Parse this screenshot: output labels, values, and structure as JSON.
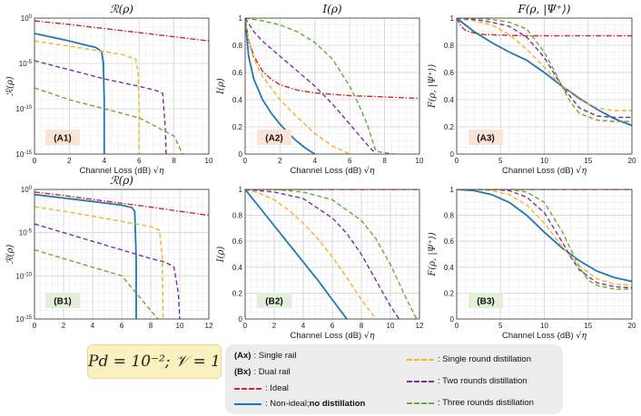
{
  "figure": {
    "colors": {
      "ideal": "#d62728",
      "no_distillation": "#1f77b4",
      "single_round": "#f0b323",
      "two_rounds": "#7b2f9e",
      "three_rounds": "#6aaa32",
      "label_bg_A": "#fbe3d6",
      "label_bg_B": "#e2f0d9"
    }
  },
  "parameter_box": {
    "text": "P_d = 10^{-2}; V = 1",
    "display": "Pd = 10⁻²; 𝒱 = 1"
  },
  "legend": {
    "ax_code": "(Ax)",
    "ax_label": ": Single rail",
    "bx_code": "(Bx)",
    "bx_label": ": Dual rail",
    "ideal_label": ": Ideal",
    "nodist_prefix": ": Non-ideal; ",
    "nodist_bold": "no distillation",
    "single_label": ": Single round distillation",
    "two_label": ": Two rounds distillation",
    "three_label": ": Three rounds distillation"
  },
  "chart_data": [
    {
      "id": "A1",
      "type": "line",
      "title": "ℛ(ρ)",
      "panel_label": "(A1)",
      "xlabel": "Channel Loss (dB) √η",
      "ylabel": "ℛ(ρ)",
      "yscale": "log",
      "xlim": [
        0,
        10
      ],
      "ylim": [
        1e-15,
        1
      ],
      "xticks": [
        0,
        2,
        4,
        6,
        8,
        10
      ],
      "yticks": [
        1,
        1e-05,
        1e-10,
        1e-15
      ],
      "yticklabels": [
        "10^0",
        "10^-5",
        "10^-10",
        "10^-15"
      ],
      "series": [
        {
          "name": "Ideal",
          "key": "ideal",
          "x": [
            0,
            2,
            4,
            6,
            8,
            10
          ],
          "y": [
            0.5,
            0.2,
            0.07,
            0.025,
            0.009,
            0.003
          ]
        },
        {
          "name": "No distillation",
          "key": "no_distillation",
          "x": [
            0,
            1,
            2,
            3,
            3.5,
            3.85,
            3.95,
            4.0,
            4.0
          ],
          "y": [
            0.02,
            0.008,
            0.003,
            0.001,
            0.0006,
            0.0002,
            1e-05,
            1e-09,
            1e-15
          ]
        },
        {
          "name": "Single round distillation",
          "key": "single_round",
          "x": [
            0,
            2,
            4,
            5,
            5.8,
            5.95,
            6.0,
            6.0
          ],
          "y": [
            0.003,
            0.0008,
            0.0002,
            0.0001,
            3e-05,
            1e-06,
            1e-10,
            1e-15
          ]
        },
        {
          "name": "Two rounds distillation",
          "key": "two_rounds",
          "x": [
            0,
            2,
            4,
            6,
            7,
            7.35,
            7.5,
            7.55
          ],
          "y": [
            2e-05,
            2e-06,
            2e-07,
            3e-08,
            1e-08,
            5e-09,
            1e-12,
            1e-15
          ]
        },
        {
          "name": "Three rounds distillation",
          "key": "three_rounds",
          "x": [
            0,
            2,
            4,
            6,
            8,
            8.5
          ],
          "y": [
            2e-08,
            1e-09,
            1e-10,
            1e-11,
            1e-13,
            1e-15
          ]
        }
      ]
    },
    {
      "id": "A2",
      "type": "line",
      "title": "I(ρ)",
      "panel_label": "(A2)",
      "xlabel": "Channel Loss (dB) √η",
      "ylabel": "I(ρ)",
      "yscale": "linear",
      "xlim": [
        0,
        10
      ],
      "ylim": [
        0,
        1
      ],
      "xticks": [
        0,
        2,
        4,
        6,
        8,
        10
      ],
      "yticks": [
        0,
        0.2,
        0.4,
        0.6,
        0.8,
        1
      ],
      "series": [
        {
          "name": "Ideal",
          "key": "ideal",
          "x": [
            0,
            0.2,
            0.5,
            1,
            1.5,
            2,
            3,
            4,
            6,
            8,
            10
          ],
          "y": [
            1,
            0.84,
            0.72,
            0.61,
            0.55,
            0.51,
            0.47,
            0.45,
            0.43,
            0.42,
            0.41
          ]
        },
        {
          "name": "No distillation",
          "key": "no_distillation",
          "x": [
            0,
            0.2,
            0.5,
            1,
            1.5,
            2,
            2.5,
            3,
            3.5,
            4
          ],
          "y": [
            1,
            0.72,
            0.55,
            0.4,
            0.3,
            0.22,
            0.15,
            0.09,
            0.04,
            0
          ]
        },
        {
          "name": "Single round distillation",
          "key": "single_round",
          "x": [
            0,
            0.25,
            0.5,
            1,
            2,
            3,
            4,
            5,
            6
          ],
          "y": [
            1,
            0.8,
            0.7,
            0.57,
            0.4,
            0.27,
            0.15,
            0.06,
            0
          ]
        },
        {
          "name": "Two rounds distillation",
          "key": "two_rounds",
          "x": [
            0,
            0.5,
            1,
            2,
            3,
            4,
            5,
            6,
            7,
            7.5
          ],
          "y": [
            1,
            0.9,
            0.83,
            0.72,
            0.61,
            0.5,
            0.37,
            0.22,
            0.07,
            0
          ]
        },
        {
          "name": "Three rounds distillation",
          "key": "three_rounds",
          "x": [
            0,
            1,
            2,
            3,
            4,
            5,
            6,
            6.5,
            7,
            7.5,
            8.5
          ],
          "y": [
            1,
            0.98,
            0.95,
            0.9,
            0.82,
            0.7,
            0.5,
            0.37,
            0.22,
            0.02,
            0
          ]
        }
      ]
    },
    {
      "id": "A3",
      "type": "line",
      "title": "F(ρ, |Ψ⁺⟩)",
      "panel_label": "(A3)",
      "xlabel": "Channel Loss (dB) √η",
      "ylabel": "F(ρ, |Ψ⁺⟩)",
      "yscale": "linear",
      "xlim": [
        0,
        20
      ],
      "ylim": [
        0,
        1
      ],
      "xticks": [
        0,
        5,
        10,
        15,
        20
      ],
      "yticks": [
        0,
        0.2,
        0.4,
        0.6,
        0.8,
        1
      ],
      "series": [
        {
          "name": "Ideal",
          "key": "ideal",
          "x": [
            0,
            0.5,
            1,
            2,
            3,
            5,
            8,
            12,
            20
          ],
          "y": [
            1,
            0.94,
            0.91,
            0.89,
            0.88,
            0.875,
            0.87,
            0.87,
            0.87
          ]
        },
        {
          "name": "No distillation",
          "key": "no_distillation",
          "x": [
            0,
            1,
            2,
            4,
            6,
            8,
            10,
            12,
            14,
            16,
            18,
            20
          ],
          "y": [
            1,
            0.95,
            0.9,
            0.82,
            0.75,
            0.69,
            0.6,
            0.5,
            0.41,
            0.33,
            0.26,
            0.21
          ]
        },
        {
          "name": "Single round distillation",
          "key": "single_round",
          "x": [
            0,
            2,
            4,
            6,
            8,
            10,
            12,
            14,
            16,
            18,
            20
          ],
          "y": [
            1,
            0.98,
            0.95,
            0.88,
            0.77,
            0.64,
            0.5,
            0.4,
            0.34,
            0.32,
            0.32
          ]
        },
        {
          "name": "Two rounds distillation",
          "key": "two_rounds",
          "x": [
            0,
            2,
            4,
            6,
            8,
            10,
            12,
            14,
            16,
            18,
            20
          ],
          "y": [
            1,
            0.99,
            0.97,
            0.94,
            0.86,
            0.71,
            0.5,
            0.34,
            0.28,
            0.27,
            0.27
          ]
        },
        {
          "name": "Three rounds distillation",
          "key": "three_rounds",
          "x": [
            0,
            2,
            4,
            6,
            8,
            10,
            11,
            12,
            13,
            14,
            16,
            18,
            20
          ],
          "y": [
            1,
            1,
            0.99,
            0.97,
            0.92,
            0.75,
            0.63,
            0.5,
            0.38,
            0.3,
            0.25,
            0.24,
            0.24
          ]
        }
      ]
    },
    {
      "id": "B1",
      "type": "line",
      "title": "ℛ(ρ)",
      "panel_label": "(B1)",
      "xlabel": "",
      "ylabel": "ℛ(ρ)",
      "yscale": "log",
      "xlim": [
        0,
        12
      ],
      "ylim": [
        1e-15,
        1
      ],
      "xticks": [
        0,
        2,
        4,
        6,
        8,
        10,
        12
      ],
      "yticks": [
        1,
        1e-05,
        1e-10,
        1e-15
      ],
      "yticklabels": [
        "10^0",
        "10^-5",
        "10^-10",
        "10^-15"
      ],
      "series": [
        {
          "name": "Ideal",
          "key": "ideal",
          "x": [
            0,
            2,
            4,
            6,
            8,
            10,
            12
          ],
          "y": [
            0.5,
            0.2,
            0.07,
            0.025,
            0.009,
            0.003,
            0.001
          ]
        },
        {
          "name": "No distillation",
          "key": "no_distillation",
          "x": [
            0,
            2,
            4,
            6,
            6.7,
            6.9,
            7.0,
            7.0
          ],
          "y": [
            0.25,
            0.1,
            0.04,
            0.015,
            0.008,
            0.003,
            1e-08,
            1e-15
          ]
        },
        {
          "name": "Single round distillation",
          "key": "single_round",
          "x": [
            0,
            2,
            4,
            6,
            8,
            8.6,
            8.8,
            8.85
          ],
          "y": [
            0.01,
            0.003,
            0.0008,
            0.0002,
            5e-05,
            2e-05,
            1e-08,
            1e-15
          ]
        },
        {
          "name": "Two rounds distillation",
          "key": "two_rounds",
          "x": [
            0,
            2,
            4,
            6,
            8,
            9,
            9.6,
            9.9,
            10
          ],
          "y": [
            0.0001,
            1e-05,
            1e-06,
            1e-07,
            1e-08,
            4e-09,
            1e-09,
            1e-12,
            1e-15
          ]
        },
        {
          "name": "Three rounds distillation",
          "key": "three_rounds",
          "x": [
            0,
            2,
            4,
            6,
            8,
            8.5
          ],
          "y": [
            1e-07,
            1e-08,
            1e-09,
            1e-10,
            1e-14,
            1e-15
          ]
        }
      ]
    },
    {
      "id": "B2",
      "type": "line",
      "title": "",
      "panel_label": "(B2)",
      "xlabel": "Channel Loss (dB) √η",
      "ylabel": "I(ρ)",
      "yscale": "linear",
      "xlim": [
        0,
        12
      ],
      "ylim": [
        0,
        1
      ],
      "xticks": [
        0,
        2,
        4,
        6,
        8,
        10,
        12
      ],
      "yticks": [
        0,
        0.2,
        0.4,
        0.6,
        0.8,
        1
      ],
      "series": [
        {
          "name": "Ideal",
          "key": "ideal",
          "x": [
            0,
            12
          ],
          "y": [
            1,
            1
          ]
        },
        {
          "name": "No distillation",
          "key": "no_distillation",
          "x": [
            0,
            1,
            2,
            3,
            4,
            5,
            6,
            7
          ],
          "y": [
            1,
            0.86,
            0.72,
            0.58,
            0.44,
            0.3,
            0.15,
            0
          ]
        },
        {
          "name": "Single round distillation",
          "key": "single_round",
          "x": [
            0,
            1,
            2,
            3,
            4,
            5,
            6,
            7,
            8,
            9
          ],
          "y": [
            1,
            0.97,
            0.92,
            0.84,
            0.74,
            0.62,
            0.48,
            0.32,
            0.15,
            0
          ]
        },
        {
          "name": "Two rounds distillation",
          "key": "two_rounds",
          "x": [
            0,
            2,
            4,
            6,
            7,
            8,
            9,
            10,
            10.6
          ],
          "y": [
            1,
            0.98,
            0.93,
            0.78,
            0.66,
            0.5,
            0.3,
            0.1,
            0
          ]
        },
        {
          "name": "Three rounds distillation",
          "key": "three_rounds",
          "x": [
            0,
            2,
            4,
            6,
            8,
            9,
            10,
            11,
            11.8
          ],
          "y": [
            1,
            1,
            0.98,
            0.92,
            0.76,
            0.62,
            0.42,
            0.18,
            0
          ]
        }
      ]
    },
    {
      "id": "B3",
      "type": "line",
      "title": "",
      "panel_label": "(B3)",
      "xlabel": "Channel Loss (dB) √η",
      "ylabel": "F(ρ, |Ψ⁺⟩)",
      "yscale": "linear",
      "xlim": [
        0,
        20
      ],
      "ylim": [
        0,
        1
      ],
      "xticks": [
        0,
        5,
        10,
        15,
        20
      ],
      "yticks": [
        0,
        0.2,
        0.4,
        0.6,
        0.8,
        1
      ],
      "series": [
        {
          "name": "Ideal",
          "key": "ideal",
          "x": [
            0,
            20
          ],
          "y": [
            1,
            1
          ]
        },
        {
          "name": "No distillation",
          "key": "no_distillation",
          "x": [
            0,
            2,
            4,
            6,
            8,
            10,
            12,
            14,
            16,
            18,
            20
          ],
          "y": [
            1,
            0.99,
            0.96,
            0.9,
            0.8,
            0.67,
            0.55,
            0.45,
            0.37,
            0.32,
            0.29
          ]
        },
        {
          "name": "Single round distillation",
          "key": "single_round",
          "x": [
            0,
            2,
            4,
            6,
            8,
            10,
            12,
            14,
            16,
            18,
            20
          ],
          "y": [
            1,
            1,
            0.99,
            0.96,
            0.88,
            0.74,
            0.56,
            0.41,
            0.31,
            0.27,
            0.26
          ]
        },
        {
          "name": "Two rounds distillation",
          "key": "two_rounds",
          "x": [
            0,
            2,
            4,
            6,
            8,
            10,
            12,
            13,
            14,
            16,
            18,
            20
          ],
          "y": [
            1,
            1,
            1,
            0.99,
            0.94,
            0.82,
            0.6,
            0.48,
            0.38,
            0.28,
            0.25,
            0.24
          ]
        },
        {
          "name": "Three rounds distillation",
          "key": "three_rounds",
          "x": [
            0,
            2,
            4,
            6,
            8,
            10,
            12,
            13,
            14,
            15,
            16,
            18,
            20
          ],
          "y": [
            1,
            1,
            1,
            1,
            0.98,
            0.9,
            0.68,
            0.54,
            0.4,
            0.3,
            0.26,
            0.23,
            0.23
          ]
        }
      ]
    }
  ]
}
